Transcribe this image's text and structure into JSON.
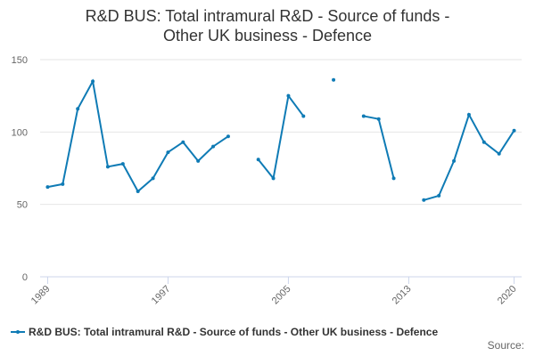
{
  "chart_data": {
    "type": "line",
    "title": "R&D BUS: Total intramural R&D - Source of funds - Other UK business - Defence",
    "x": [
      1989,
      1990,
      1991,
      1992,
      1993,
      1994,
      1995,
      1996,
      1997,
      1998,
      1999,
      2000,
      2001,
      2002,
      2003,
      2004,
      2005,
      2006,
      2007,
      2008,
      2009,
      2010,
      2011,
      2012,
      2013,
      2014,
      2015,
      2016,
      2017,
      2018,
      2019,
      2020
    ],
    "series": [
      {
        "name": "R&D BUS: Total intramural R&D - Source of funds - Other UK business - Defence",
        "color": "#0f7bb5",
        "values": [
          62,
          64,
          116,
          135,
          76,
          78,
          59,
          68,
          86,
          93,
          80,
          90,
          97,
          null,
          81,
          68,
          125,
          111,
          null,
          136,
          null,
          111,
          109,
          68,
          null,
          53,
          56,
          80,
          112,
          93,
          85,
          101
        ]
      }
    ],
    "xlim": [
      1988.5,
      2020.5
    ],
    "xticks": [
      1989,
      1997,
      2005,
      2013,
      2020
    ],
    "ylim": [
      0,
      150
    ],
    "yticks": [
      0,
      50,
      100,
      150
    ],
    "grid": true,
    "legend": "bottom",
    "source": "Source:"
  }
}
